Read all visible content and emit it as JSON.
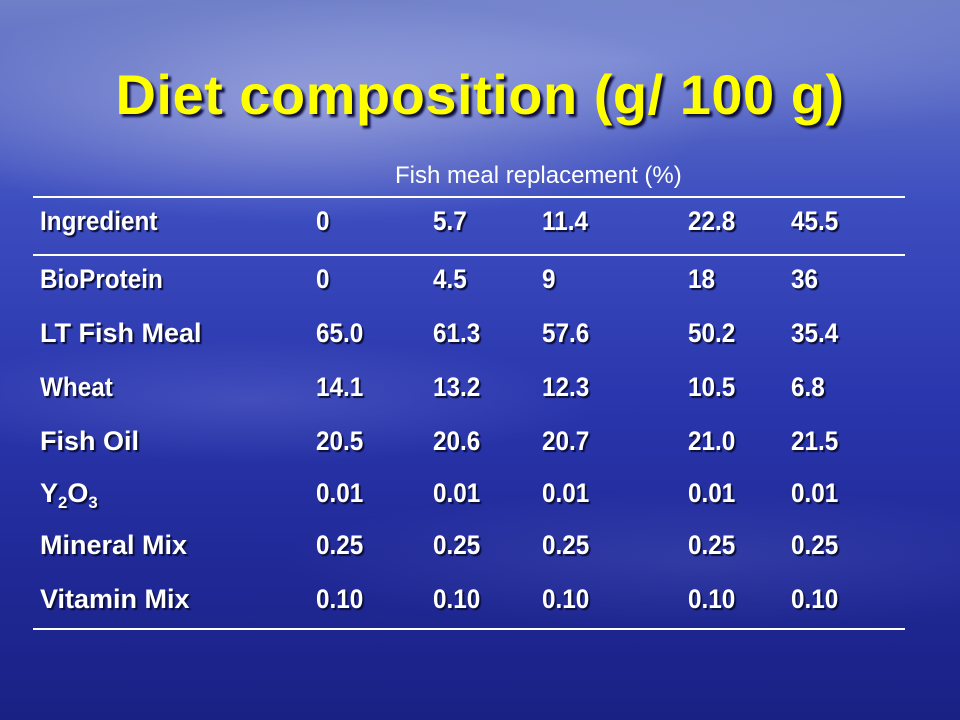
{
  "slide": {
    "title": "Diet composition (g/ 100 g)",
    "subtitle": "Fish meal replacement (%)"
  },
  "table": {
    "header": [
      "Ingredient",
      "0",
      "5.7",
      "11.4",
      "22.8",
      "45.5"
    ],
    "rows": [
      {
        "label": "BioProtein",
        "values": [
          "0",
          "4.5",
          "9",
          "18",
          "36"
        ]
      },
      {
        "label": "LT Fish Meal",
        "values": [
          "65.0",
          "61.3",
          "57.6",
          "50.2",
          "35.4"
        ]
      },
      {
        "label": "Wheat",
        "values": [
          "14.1",
          "13.2",
          "12.3",
          "10.5",
          "6.8"
        ]
      },
      {
        "label": "Fish Oil",
        "values": [
          "20.5",
          "20.6",
          "20.7",
          "21.0",
          "21.5"
        ]
      },
      {
        "label_parts": {
          "y": "Y",
          "two": "2",
          "o": "O",
          "three": "3"
        },
        "values": [
          "0.01",
          "0.01",
          "0.01",
          "0.01",
          "0.01"
        ]
      },
      {
        "label": "Mineral Mix",
        "values": [
          "0.25",
          "0.25",
          "0.25",
          "0.25",
          "0.25"
        ]
      },
      {
        "label": "Vitamin Mix",
        "values": [
          "0.10",
          "0.10",
          "0.10",
          "0.10",
          "0.10"
        ]
      }
    ]
  },
  "colors": {
    "title": "#ffff00",
    "text": "#ffffff",
    "background": "#2a36ad"
  }
}
